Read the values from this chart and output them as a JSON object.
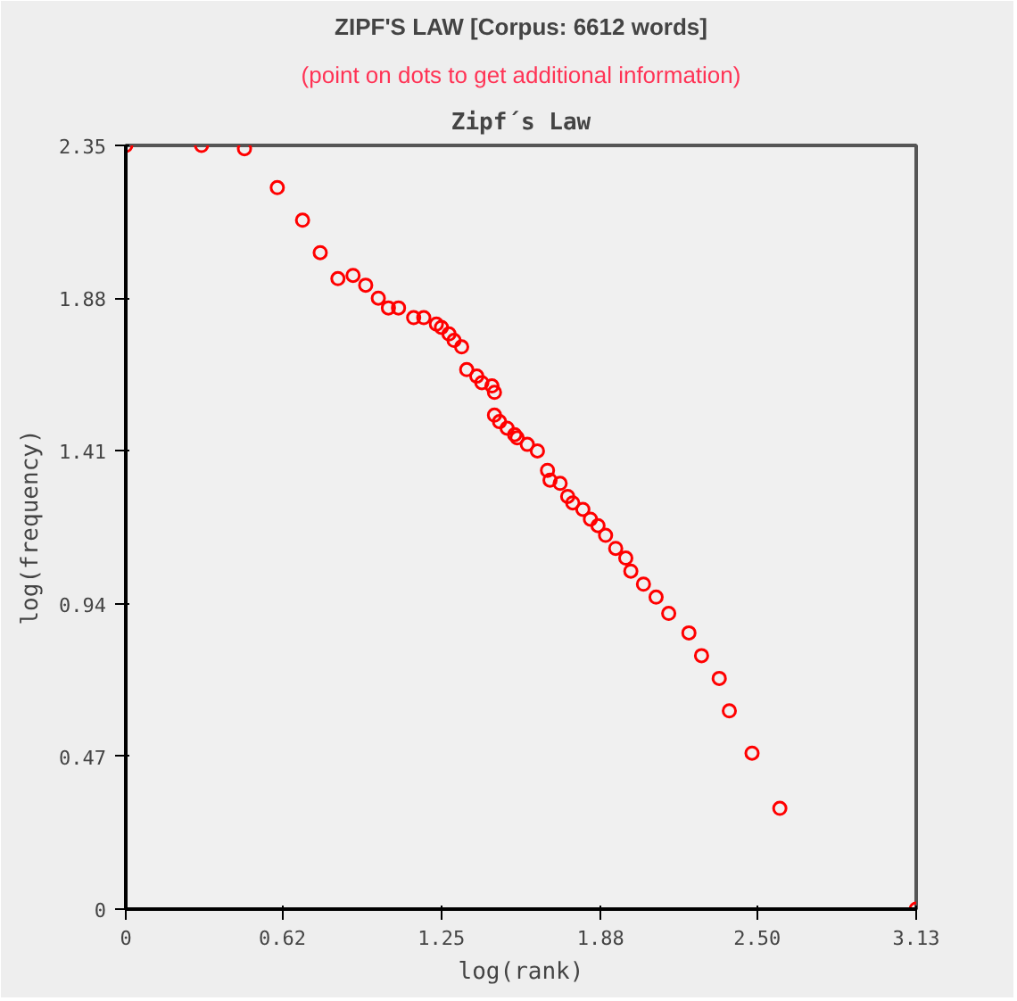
{
  "chart_data": {
    "type": "scatter",
    "title": "ZIPF'S LAW [Corpus: 6612 words]",
    "subtitle": "(point on dots to get additional information)",
    "annotations": [
      "Zipf´s Law"
    ],
    "xlabel": "log(rank)",
    "ylabel": "log(frequency)",
    "xlim": [
      0,
      3.13
    ],
    "ylim": [
      0,
      2.35
    ],
    "xticks": [
      0,
      0.62,
      1.25,
      1.88,
      {
        "value": 2.5,
        "label": "2.50"
      },
      3.13
    ],
    "yticks": [
      0,
      0.47,
      0.94,
      1.41,
      1.88,
      2.35
    ],
    "grid": false,
    "marker": "circle",
    "series": [
      {
        "color": "#ff0000",
        "x": [
          0,
          0.3,
          0.47,
          0.6,
          0.7,
          0.77,
          0.84,
          0.9,
          0.95,
          1.0,
          1.04,
          1.08,
          1.14,
          1.18,
          1.23,
          1.25,
          1.28,
          1.3,
          1.33,
          1.35,
          1.39,
          1.41,
          1.45,
          1.46,
          1.46,
          1.48,
          1.51,
          1.54,
          1.55,
          1.59,
          1.63,
          1.67,
          1.68,
          1.72,
          1.75,
          1.77,
          1.81,
          1.84,
          1.87,
          1.9,
          1.94,
          1.98,
          2.0,
          2.05,
          2.1,
          2.15,
          2.23,
          2.28,
          2.35,
          2.39,
          2.48,
          2.59,
          3.13
        ],
        "values": [
          2.35,
          2.35,
          2.34,
          2.22,
          2.12,
          2.02,
          1.94,
          1.95,
          1.92,
          1.88,
          1.85,
          1.85,
          1.82,
          1.82,
          1.8,
          1.79,
          1.77,
          1.75,
          1.73,
          1.66,
          1.64,
          1.62,
          1.61,
          1.59,
          1.52,
          1.5,
          1.48,
          1.46,
          1.45,
          1.43,
          1.41,
          1.35,
          1.32,
          1.31,
          1.27,
          1.25,
          1.23,
          1.2,
          1.18,
          1.15,
          1.11,
          1.08,
          1.04,
          1.0,
          0.96,
          0.91,
          0.85,
          0.78,
          0.71,
          0.61,
          0.48,
          0.31,
          0
        ]
      }
    ]
  }
}
